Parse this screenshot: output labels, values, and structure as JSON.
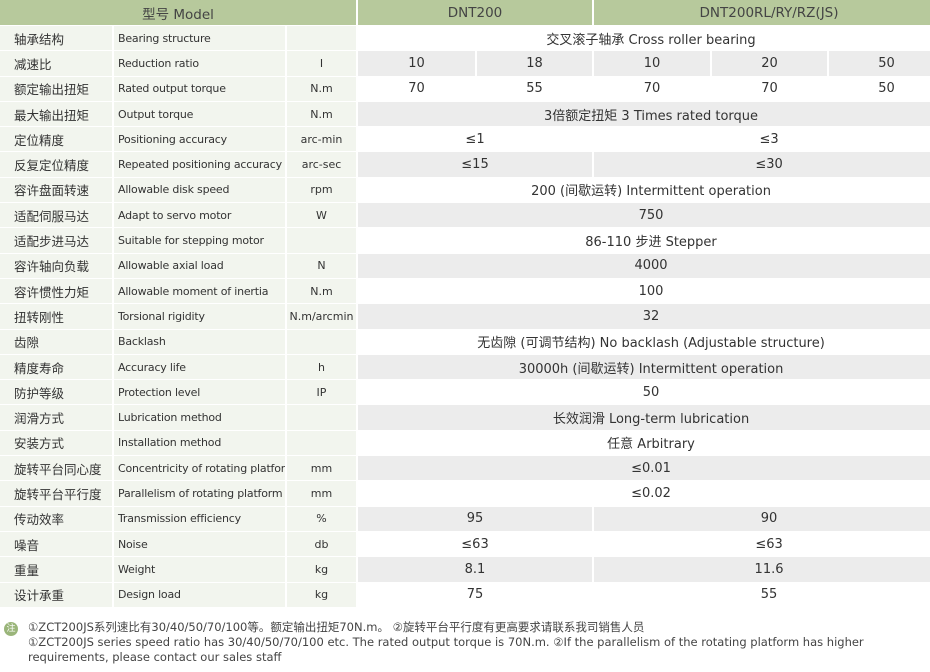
{
  "header": {
    "model": "型号 Model",
    "group1": "DNT200",
    "group2": "DNT200RL/RY/RZ(JS)"
  },
  "rows": [
    {
      "zh": "轴承结构",
      "en": "Bearing structure",
      "unit": "",
      "values": [
        "交叉滚子轴承 Cross roller bearing"
      ]
    },
    {
      "zh": "减速比",
      "en": "Reduction ratio",
      "unit": "I",
      "values": [
        "10",
        "18",
        "10",
        "20",
        "50"
      ]
    },
    {
      "zh": "额定输出扭矩",
      "en": "Rated output torque",
      "unit": "N.m",
      "values": [
        "70",
        "55",
        "70",
        "70",
        "50"
      ]
    },
    {
      "zh": "最大输出扭矩",
      "en": "Output torque",
      "unit": "N.m",
      "values": [
        "3倍额定扭矩 3 Times rated torque"
      ]
    },
    {
      "zh": "定位精度",
      "en": "Positioning accuracy",
      "unit": "arc-min",
      "values": [
        "≤1",
        "≤3"
      ]
    },
    {
      "zh": "反复定位精度",
      "en": "Repeated positioning accuracy",
      "unit": "arc-sec",
      "values": [
        "≤15",
        "≤30"
      ]
    },
    {
      "zh": "容许盘面转速",
      "en": "Allowable disk speed",
      "unit": "rpm",
      "values": [
        "200 (间歇运转) Intermittent operation"
      ]
    },
    {
      "zh": "适配伺服马达",
      "en": "Adapt to servo motor",
      "unit": "W",
      "values": [
        "750"
      ]
    },
    {
      "zh": "适配步进马达",
      "en": "Suitable for stepping motor",
      "unit": "",
      "values": [
        "86-110 步进 Stepper"
      ]
    },
    {
      "zh": "容许轴向负载",
      "en": "Allowable axial load",
      "unit": "N",
      "values": [
        "4000"
      ]
    },
    {
      "zh": "容许惯性力矩",
      "en": "Allowable moment of inertia",
      "unit": "N.m",
      "values": [
        "100"
      ]
    },
    {
      "zh": "扭转刚性",
      "en": "Torsional rigidity",
      "unit": "N.m/arcmin",
      "values": [
        "32"
      ]
    },
    {
      "zh": "齿隙",
      "en": "Backlash",
      "unit": "",
      "values": [
        "无齿隙 (可调节结构) No backlash (Adjustable structure)"
      ]
    },
    {
      "zh": "精度寿命",
      "en": "Accuracy life",
      "unit": "h",
      "values": [
        "30000h (间歇运转) Intermittent operation"
      ]
    },
    {
      "zh": "防护等级",
      "en": "Protection level",
      "unit": "IP",
      "values": [
        "50"
      ]
    },
    {
      "zh": "润滑方式",
      "en": "Lubrication method",
      "unit": "",
      "values": [
        "长效润滑 Long-term lubrication"
      ]
    },
    {
      "zh": "安装方式",
      "en": "Installation method",
      "unit": "",
      "values": [
        "任意 Arbitrary"
      ]
    },
    {
      "zh": "旋转平台同心度",
      "en": "Concentricity of rotating platform",
      "unit": "mm",
      "values": [
        "≤0.01"
      ]
    },
    {
      "zh": "旋转平台平行度",
      "en": "Parallelism of rotating platform",
      "unit": "mm",
      "values": [
        "≤0.02"
      ]
    },
    {
      "zh": "传动效率",
      "en": "Transmission efficiency",
      "unit": "%",
      "values": [
        "95",
        "90"
      ]
    },
    {
      "zh": "噪音",
      "en": "Noise",
      "unit": "db",
      "values": [
        "≤63",
        "≤63"
      ]
    },
    {
      "zh": "重量",
      "en": "Weight",
      "unit": "kg",
      "values": [
        "8.1",
        "11.6"
      ]
    },
    {
      "zh": "设计承重",
      "en": "Design load",
      "unit": "kg",
      "values": [
        "75",
        "55"
      ]
    }
  ],
  "notes": {
    "icon": "注",
    "zh": "①ZCT200JS系列速比有30/40/50/70/100等。额定输出扭矩70N.m。 ②旋转平台平行度有更高要求请联系我司销售人员",
    "en": "①ZCT200JS series speed ratio has 30/40/50/70/100 etc. The rated output torque is 70N.m. ②If the parallelism of the rotating platform has higher requirements, please contact our sales staff"
  }
}
